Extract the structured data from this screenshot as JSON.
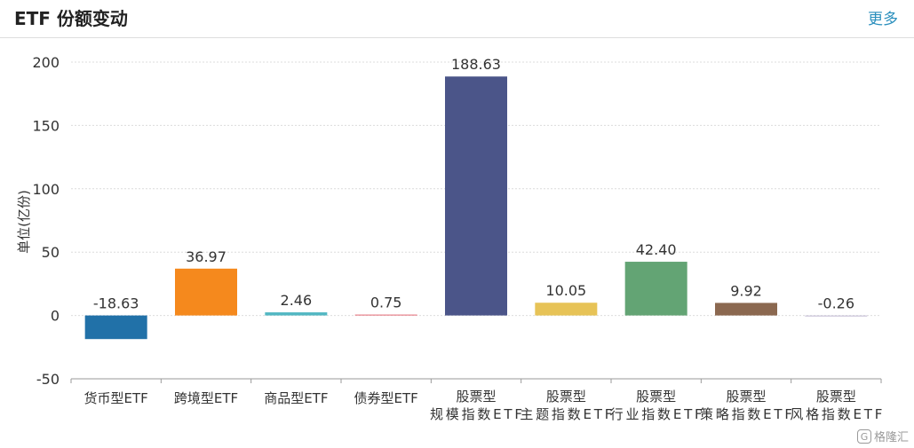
{
  "header": {
    "title": "ETF 份额变动",
    "more_label": "更多"
  },
  "watermark": {
    "logo": "G",
    "text": "格隆汇"
  },
  "chart_data": {
    "type": "bar",
    "ylabel": "单位(亿份)",
    "ylim": [
      -50,
      200
    ],
    "yticks": [
      200,
      150,
      100,
      50,
      0,
      -50
    ],
    "grid": true,
    "categories": [
      [
        "货币型ETF"
      ],
      [
        "跨境型ETF"
      ],
      [
        "商品型ETF"
      ],
      [
        "债券型ETF"
      ],
      [
        "股票型",
        "规模指数ETF"
      ],
      [
        "股票型",
        "主题指数ETF"
      ],
      [
        "股票型",
        "行业指数ETF"
      ],
      [
        "股票型",
        "策略指数ETF"
      ],
      [
        "股票型",
        "风格指数ETF"
      ]
    ],
    "values": [
      -18.63,
      36.97,
      2.46,
      0.75,
      188.63,
      10.05,
      42.4,
      9.92,
      -0.26
    ],
    "labels": [
      "-18.63",
      "36.97",
      "2.46",
      "0.75",
      "188.63",
      "10.05",
      "42.40",
      "9.92",
      "-0.26"
    ],
    "colors": [
      "#2171a8",
      "#f5891d",
      "#52b7c2",
      "#e7818a",
      "#4b5589",
      "#e7c357",
      "#63a474",
      "#8b6850",
      "#c9c2d9"
    ]
  }
}
